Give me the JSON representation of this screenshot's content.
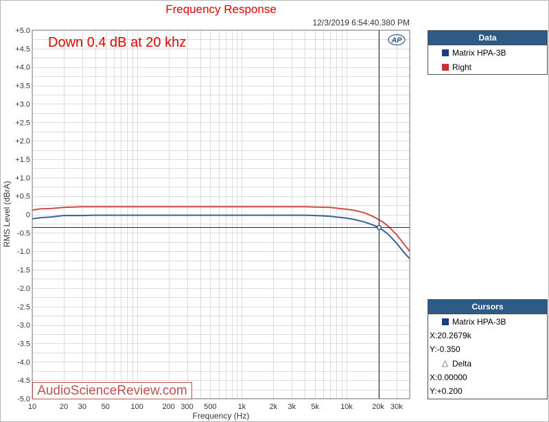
{
  "header": {
    "title": "Frequency Response",
    "timestamp": "12/3/2019 6:54:40.380 PM"
  },
  "annotation": "Down 0.4 dB at 20 khz",
  "watermark": "AudioScienceReview.com",
  "logo_text": "AP",
  "colors": {
    "series1": "#3a5f9a",
    "series2": "#cf4b4b",
    "title": "#e00000",
    "panel_header": "#2e5a86",
    "cursor": "#0e2a59"
  },
  "data_panel": {
    "title": "Data",
    "items": [
      {
        "label": "Matrix HPA-3B",
        "color": "#1d3d7a"
      },
      {
        "label": "Right",
        "color": "#c8312f"
      }
    ]
  },
  "cursors_panel": {
    "title": "Cursors",
    "series_label": "Matrix HPA-3B",
    "series_color": "#1d3d7a",
    "x_value": "X:20.2679k",
    "y_value": "Y:-0.350",
    "delta_label": "Delta",
    "delta_x": "X:0.00000",
    "delta_y": "Y:+0.200"
  },
  "chart_data": {
    "type": "line",
    "title": "Frequency Response",
    "xlabel": "Frequency (Hz)",
    "ylabel": "RMS Level (dBrA)",
    "x_scale": "log",
    "xlim": [
      10,
      40000
    ],
    "ylim": [
      -5.0,
      5.0
    ],
    "grid": true,
    "x_ticks": [
      {
        "v": 10,
        "label": "10"
      },
      {
        "v": 20,
        "label": "20"
      },
      {
        "v": 30,
        "label": "30"
      },
      {
        "v": 50,
        "label": "50"
      },
      {
        "v": 100,
        "label": "100"
      },
      {
        "v": 200,
        "label": "200"
      },
      {
        "v": 300,
        "label": "300"
      },
      {
        "v": 500,
        "label": "500"
      },
      {
        "v": 1000,
        "label": "1k"
      },
      {
        "v": 2000,
        "label": "2k"
      },
      {
        "v": 3000,
        "label": "3k"
      },
      {
        "v": 5000,
        "label": "5k"
      },
      {
        "v": 10000,
        "label": "10k"
      },
      {
        "v": 20000,
        "label": "20k"
      },
      {
        "v": 30000,
        "label": "30k"
      }
    ],
    "y_ticks": [
      {
        "v": 5.0,
        "label": "+5.0"
      },
      {
        "v": 4.5,
        "label": "+4.5"
      },
      {
        "v": 4.0,
        "label": "+4.0"
      },
      {
        "v": 3.5,
        "label": "+3.5"
      },
      {
        "v": 3.0,
        "label": "+3.0"
      },
      {
        "v": 2.5,
        "label": "+2.5"
      },
      {
        "v": 2.0,
        "label": "+2.0"
      },
      {
        "v": 1.5,
        "label": "+1.5"
      },
      {
        "v": 1.0,
        "label": "+1.0"
      },
      {
        "v": 0.5,
        "label": "+0.5"
      },
      {
        "v": 0,
        "label": "0"
      },
      {
        "v": -0.5,
        "label": "-0.5"
      },
      {
        "v": -1.0,
        "label": "-1.0"
      },
      {
        "v": -1.5,
        "label": "-1.5"
      },
      {
        "v": -2.0,
        "label": "-2.0"
      },
      {
        "v": -2.5,
        "label": "-2.5"
      },
      {
        "v": -3.0,
        "label": "-3.0"
      },
      {
        "v": -3.5,
        "label": "-3.5"
      },
      {
        "v": -4.0,
        "label": "-4.0"
      },
      {
        "v": -4.5,
        "label": "-4.5"
      },
      {
        "v": -5.0,
        "label": "-5.0"
      }
    ],
    "cursor": {
      "x": 20267.9,
      "y": -0.35
    },
    "series": [
      {
        "name": "Matrix HPA-3B",
        "color": "#3a5f9a",
        "points": [
          [
            10,
            -0.12
          ],
          [
            12,
            -0.09
          ],
          [
            15,
            -0.07
          ],
          [
            20,
            -0.03
          ],
          [
            30,
            -0.03
          ],
          [
            40,
            -0.02
          ],
          [
            100,
            -0.02
          ],
          [
            1000,
            -0.02
          ],
          [
            4000,
            -0.02
          ],
          [
            5000,
            -0.03
          ],
          [
            6000,
            -0.04
          ],
          [
            7000,
            -0.05
          ],
          [
            8000,
            -0.07
          ],
          [
            10000,
            -0.1
          ],
          [
            12000,
            -0.14
          ],
          [
            15000,
            -0.21
          ],
          [
            18000,
            -0.29
          ],
          [
            20000,
            -0.35
          ],
          [
            22000,
            -0.42
          ],
          [
            25000,
            -0.54
          ],
          [
            30000,
            -0.78
          ],
          [
            35000,
            -1.02
          ],
          [
            40000,
            -1.2
          ]
        ]
      },
      {
        "name": "Right",
        "color": "#cf4b4b",
        "points": [
          [
            10,
            0.12
          ],
          [
            12,
            0.15
          ],
          [
            15,
            0.16
          ],
          [
            20,
            0.19
          ],
          [
            25,
            0.2
          ],
          [
            30,
            0.21
          ],
          [
            100,
            0.21
          ],
          [
            1000,
            0.21
          ],
          [
            4000,
            0.21
          ],
          [
            5000,
            0.2
          ],
          [
            7000,
            0.19
          ],
          [
            8000,
            0.17
          ],
          [
            10000,
            0.14
          ],
          [
            12000,
            0.11
          ],
          [
            15000,
            0.04
          ],
          [
            18000,
            -0.06
          ],
          [
            20000,
            -0.13
          ],
          [
            22000,
            -0.2
          ],
          [
            25000,
            -0.32
          ],
          [
            30000,
            -0.55
          ],
          [
            35000,
            -0.79
          ],
          [
            40000,
            -1.0
          ]
        ]
      }
    ]
  }
}
